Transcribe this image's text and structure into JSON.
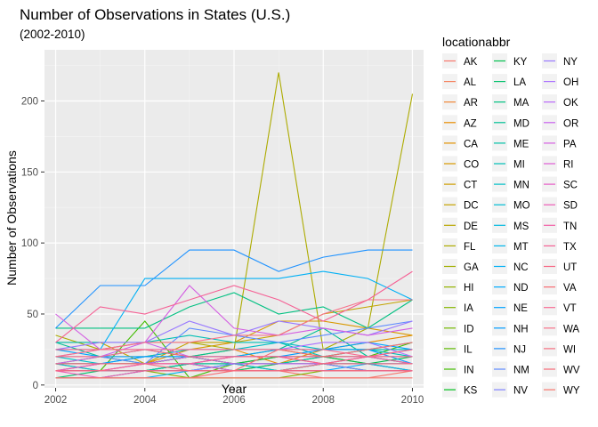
{
  "chart_data": {
    "type": "line",
    "title": "Number of Observations in States (U.S.)",
    "subtitle": "(2002-2010)",
    "xlabel": "Year",
    "ylabel": "Number of Observations",
    "x_ticks": [
      2002,
      2004,
      2006,
      2008,
      2010
    ],
    "y_ticks": [
      0,
      50,
      100,
      150,
      200
    ],
    "xlim": [
      2001.75,
      2010.25
    ],
    "ylim": [
      -2,
      236
    ],
    "grid": true,
    "legend_title": "locationabbr",
    "legend_position": "right",
    "x": [
      2002,
      2003,
      2004,
      2005,
      2006,
      2007,
      2008,
      2009,
      2010
    ],
    "series": [
      {
        "name": "AK",
        "color": "#F8766D",
        "values": [
          5,
          5,
          10,
          10,
          10,
          10,
          5,
          5,
          10
        ]
      },
      {
        "name": "AL",
        "color": "#F57F5B",
        "values": [
          10,
          10,
          10,
          10,
          10,
          10,
          10,
          10,
          10
        ]
      },
      {
        "name": "AR",
        "color": "#EF8637",
        "values": [
          10,
          15,
          15,
          15,
          15,
          20,
          20,
          20,
          20
        ]
      },
      {
        "name": "AZ",
        "color": "#E88C00",
        "values": [
          10,
          15,
          15,
          25,
          25,
          15,
          25,
          30,
          35
        ]
      },
      {
        "name": "CA",
        "color": "#E19200",
        "values": [
          10,
          10,
          10,
          10,
          10,
          10,
          10,
          10,
          10
        ]
      },
      {
        "name": "CO",
        "color": "#D89800",
        "values": [
          20,
          20,
          20,
          25,
          30,
          45,
          45,
          40,
          35
        ]
      },
      {
        "name": "CT",
        "color": "#CE9D00",
        "values": [
          15,
          10,
          15,
          15,
          10,
          15,
          15,
          15,
          10
        ]
      },
      {
        "name": "DC",
        "color": "#C4A200",
        "values": [
          30,
          30,
          15,
          30,
          30,
          35,
          50,
          55,
          60
        ]
      },
      {
        "name": "DE",
        "color": "#B9A700",
        "values": [
          10,
          10,
          10,
          10,
          10,
          10,
          10,
          10,
          10
        ]
      },
      {
        "name": "FL",
        "color": "#ADAB00",
        "values": [
          35,
          25,
          30,
          30,
          25,
          220,
          25,
          40,
          205
        ]
      },
      {
        "name": "GA",
        "color": "#A1AE00",
        "values": [
          15,
          15,
          15,
          20,
          25,
          25,
          25,
          25,
          25
        ]
      },
      {
        "name": "HI",
        "color": "#93B200",
        "values": [
          15,
          15,
          15,
          20,
          15,
          15,
          15,
          10,
          10
        ]
      },
      {
        "name": "IA",
        "color": "#84B500",
        "values": [
          10,
          10,
          10,
          5,
          5,
          5,
          10,
          10,
          10
        ]
      },
      {
        "name": "ID",
        "color": "#73B800",
        "values": [
          10,
          10,
          10,
          15,
          20,
          25,
          20,
          15,
          10
        ]
      },
      {
        "name": "IL",
        "color": "#5EBA00",
        "values": [
          15,
          20,
          15,
          20,
          15,
          20,
          20,
          20,
          15
        ]
      },
      {
        "name": "IN",
        "color": "#42BC00",
        "values": [
          10,
          10,
          45,
          5,
          15,
          15,
          20,
          20,
          30
        ]
      },
      {
        "name": "KS",
        "color": "#00BE1C",
        "values": [
          15,
          15,
          15,
          20,
          15,
          10,
          15,
          15,
          15
        ]
      },
      {
        "name": "KY",
        "color": "#00BF4C",
        "values": [
          10,
          10,
          10,
          15,
          15,
          20,
          20,
          15,
          20
        ]
      },
      {
        "name": "LA",
        "color": "#00C06A",
        "values": [
          5,
          10,
          10,
          15,
          10,
          15,
          15,
          10,
          10
        ]
      },
      {
        "name": "MA",
        "color": "#00C081",
        "values": [
          40,
          40,
          40,
          55,
          65,
          50,
          55,
          40,
          60
        ]
      },
      {
        "name": "MD",
        "color": "#00C094",
        "values": [
          30,
          20,
          25,
          20,
          25,
          25,
          40,
          20,
          20
        ]
      },
      {
        "name": "ME",
        "color": "#00C0A6",
        "values": [
          5,
          5,
          10,
          15,
          15,
          15,
          20,
          25,
          30
        ]
      },
      {
        "name": "MI",
        "color": "#00BFB6",
        "values": [
          30,
          30,
          30,
          35,
          30,
          30,
          20,
          25,
          20
        ]
      },
      {
        "name": "MN",
        "color": "#00BEC6",
        "values": [
          20,
          15,
          20,
          25,
          25,
          30,
          25,
          25,
          25
        ]
      },
      {
        "name": "MO",
        "color": "#00BCD4",
        "values": [
          15,
          10,
          10,
          10,
          15,
          10,
          15,
          20,
          15
        ]
      },
      {
        "name": "MS",
        "color": "#00B9E0",
        "values": [
          10,
          10,
          10,
          10,
          15,
          15,
          15,
          15,
          15
        ]
      },
      {
        "name": "MT",
        "color": "#00B5EB",
        "values": [
          5,
          5,
          5,
          10,
          10,
          10,
          15,
          15,
          15
        ]
      },
      {
        "name": "NC",
        "color": "#00B0F5",
        "values": [
          25,
          25,
          75,
          75,
          75,
          75,
          80,
          75,
          60
        ]
      },
      {
        "name": "ND",
        "color": "#00AAFE",
        "values": [
          10,
          10,
          10,
          10,
          10,
          10,
          10,
          15,
          10
        ]
      },
      {
        "name": "NE",
        "color": "#00A3FF",
        "values": [
          25,
          20,
          20,
          20,
          20,
          25,
          25,
          30,
          25
        ]
      },
      {
        "name": "NH",
        "color": "#009BFF",
        "values": [
          15,
          15,
          20,
          20,
          20,
          20,
          25,
          25,
          15
        ]
      },
      {
        "name": "NJ",
        "color": "#1F92FF",
        "values": [
          40,
          70,
          70,
          95,
          95,
          80,
          90,
          95,
          95
        ]
      },
      {
        "name": "NM",
        "color": "#5E8AFF",
        "values": [
          20,
          20,
          15,
          40,
          35,
          30,
          35,
          40,
          45
        ]
      },
      {
        "name": "NV",
        "color": "#7F81FF",
        "values": [
          10,
          10,
          10,
          10,
          15,
          15,
          15,
          10,
          10
        ]
      },
      {
        "name": "NY",
        "color": "#9878FF",
        "values": [
          25,
          30,
          30,
          45,
          35,
          45,
          40,
          35,
          45
        ]
      },
      {
        "name": "OH",
        "color": "#AA70FF",
        "values": [
          20,
          25,
          25,
          25,
          25,
          25,
          30,
          30,
          20
        ]
      },
      {
        "name": "OK",
        "color": "#B968F8",
        "values": [
          15,
          15,
          15,
          20,
          20,
          20,
          15,
          15,
          15
        ]
      },
      {
        "name": "OR",
        "color": "#C862EE",
        "values": [
          15,
          20,
          30,
          20,
          15,
          15,
          15,
          20,
          25
        ]
      },
      {
        "name": "PA",
        "color": "#D45EE2",
        "values": [
          50,
          25,
          30,
          70,
          40,
          35,
          40,
          35,
          40
        ]
      },
      {
        "name": "RI",
        "color": "#DF5CD4",
        "values": [
          10,
          15,
          15,
          15,
          10,
          10,
          10,
          10,
          10
        ]
      },
      {
        "name": "SC",
        "color": "#E75BC6",
        "values": [
          10,
          10,
          15,
          15,
          20,
          20,
          15,
          20,
          20
        ]
      },
      {
        "name": "SD",
        "color": "#ED5BB6",
        "values": [
          10,
          5,
          10,
          10,
          10,
          10,
          10,
          10,
          10
        ]
      },
      {
        "name": "TN",
        "color": "#F25EA6",
        "values": [
          10,
          10,
          15,
          15,
          20,
          20,
          20,
          20,
          15
        ]
      },
      {
        "name": "TX",
        "color": "#F56195",
        "values": [
          30,
          55,
          50,
          60,
          70,
          60,
          45,
          60,
          80
        ]
      },
      {
        "name": "UT",
        "color": "#F76684",
        "values": [
          25,
          25,
          25,
          20,
          20,
          20,
          15,
          20,
          25
        ]
      },
      {
        "name": "VA",
        "color": "#F86C73",
        "values": [
          5,
          5,
          5,
          5,
          10,
          25,
          20,
          25,
          30
        ]
      },
      {
        "name": "VT",
        "color": "#F96C93",
        "values": [
          20,
          20,
          25,
          25,
          25,
          25,
          25,
          20,
          20
        ]
      },
      {
        "name": "WA",
        "color": "#F7728A",
        "values": [
          20,
          25,
          30,
          30,
          35,
          35,
          50,
          60,
          60
        ]
      },
      {
        "name": "WI",
        "color": "#F66E80",
        "values": [
          15,
          15,
          15,
          10,
          10,
          10,
          15,
          15,
          15
        ]
      },
      {
        "name": "WV",
        "color": "#F76B78",
        "values": [
          10,
          10,
          10,
          10,
          10,
          10,
          10,
          10,
          10
        ]
      },
      {
        "name": "WY",
        "color": "#F8766D",
        "values": [
          5,
          5,
          5,
          5,
          5,
          5,
          5,
          5,
          5
        ]
      }
    ]
  }
}
